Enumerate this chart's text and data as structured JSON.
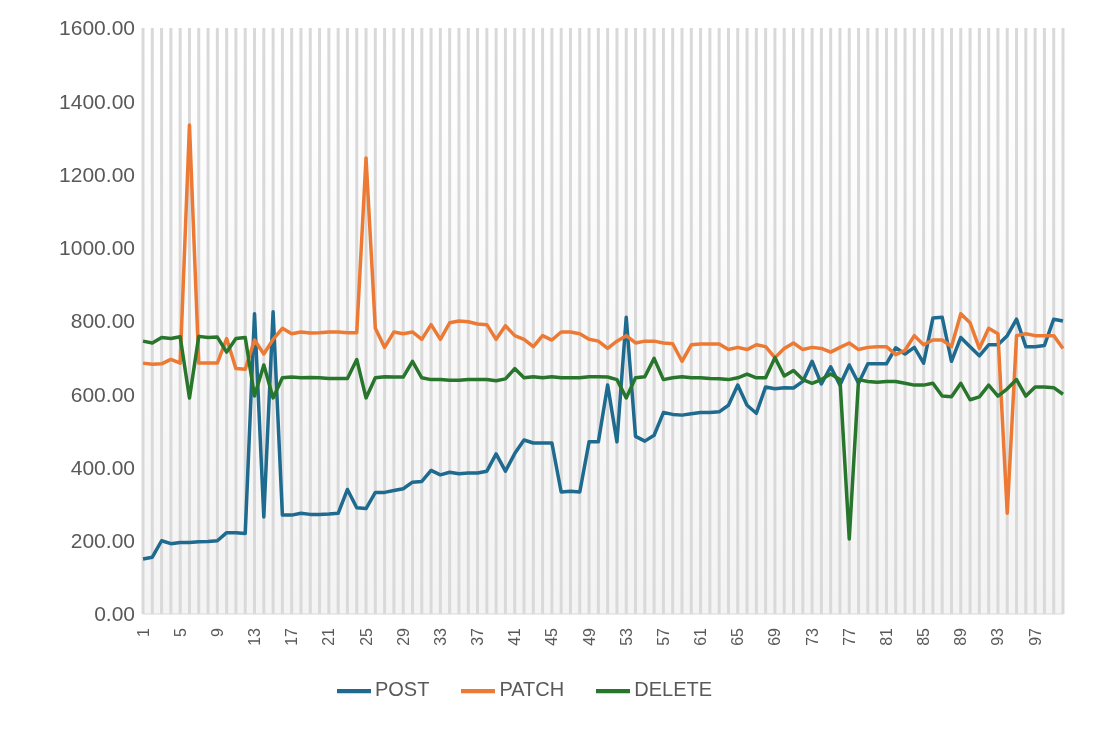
{
  "chart_data": {
    "type": "line",
    "categories": [
      "1",
      null,
      null,
      null,
      "5",
      null,
      null,
      null,
      "9",
      null,
      null,
      null,
      "13",
      null,
      null,
      null,
      "17",
      null,
      null,
      null,
      "21",
      null,
      null,
      null,
      "25",
      null,
      null,
      null,
      "29",
      null,
      null,
      null,
      "33",
      null,
      null,
      null,
      "37",
      null,
      null,
      null,
      "41",
      null,
      null,
      null,
      "45",
      null,
      null,
      null,
      "49",
      null,
      null,
      null,
      "53",
      null,
      null,
      null,
      "57",
      null,
      null,
      null,
      "61",
      null,
      null,
      null,
      "65",
      null,
      null,
      null,
      "69",
      null,
      null,
      null,
      "73",
      null,
      null,
      null,
      "77",
      null,
      null,
      null,
      "81",
      null,
      null,
      null,
      "85",
      null,
      null,
      null,
      "89",
      null,
      null,
      null,
      "93",
      null,
      null,
      null,
      "97",
      null,
      null,
      null
    ],
    "series": [
      {
        "name": "POST",
        "color": "#1f6a8f",
        "values": [
          150,
          155,
          200,
          192,
          195,
          195,
          197,
          198,
          200,
          222,
          222,
          220,
          820,
          265,
          825,
          270,
          270,
          275,
          272,
          272,
          273,
          275,
          340,
          290,
          288,
          332,
          332,
          337,
          342,
          360,
          362,
          392,
          380,
          387,
          383,
          385,
          385,
          390,
          437,
          390,
          438,
          475,
          467,
          467,
          467,
          333,
          335,
          333,
          470,
          470,
          625,
          470,
          810,
          485,
          472,
          488,
          550,
          545,
          543,
          547,
          550,
          550,
          552,
          570,
          625,
          570,
          548,
          620,
          615,
          618,
          617,
          635,
          690,
          628,
          675,
          625,
          680,
          630,
          683,
          683,
          683,
          727,
          710,
          728,
          685,
          808,
          810,
          690,
          755,
          730,
          705,
          735,
          735,
          760,
          805,
          730,
          730,
          733,
          805,
          800
        ]
      },
      {
        "name": "PATCH",
        "color": "#ec7a34",
        "values": [
          685,
          682,
          683,
          695,
          685,
          1335,
          685,
          685,
          685,
          752,
          670,
          668,
          748,
          710,
          750,
          780,
          765,
          770,
          767,
          768,
          770,
          770,
          768,
          768,
          1245,
          780,
          728,
          770,
          765,
          770,
          750,
          790,
          750,
          795,
          800,
          798,
          792,
          790,
          750,
          787,
          760,
          750,
          730,
          760,
          748,
          770,
          770,
          765,
          750,
          745,
          725,
          745,
          760,
          740,
          745,
          745,
          740,
          738,
          690,
          735,
          737,
          737,
          737,
          722,
          728,
          722,
          735,
          730,
          700,
          725,
          740,
          722,
          728,
          725,
          715,
          728,
          740,
          722,
          728,
          730,
          730,
          708,
          720,
          760,
          735,
          748,
          748,
          730,
          820,
          795,
          725,
          780,
          765,
          275,
          760,
          765,
          760,
          760,
          760,
          725
        ]
      },
      {
        "name": "DELETE",
        "color": "#27762c",
        "values": [
          745,
          740,
          755,
          752,
          757,
          590,
          758,
          755,
          756,
          715,
          752,
          755,
          595,
          680,
          590,
          645,
          647,
          645,
          646,
          645,
          643,
          643,
          643,
          695,
          590,
          645,
          648,
          647,
          647,
          690,
          645,
          640,
          640,
          638,
          638,
          640,
          640,
          640,
          637,
          642,
          670,
          645,
          648,
          645,
          648,
          645,
          645,
          645,
          648,
          648,
          647,
          640,
          590,
          645,
          648,
          698,
          640,
          645,
          648,
          645,
          645,
          643,
          642,
          640,
          645,
          655,
          645,
          645,
          700,
          650,
          665,
          640,
          630,
          640,
          655,
          640,
          205,
          640,
          635,
          633,
          635,
          635,
          630,
          625,
          625,
          630,
          595,
          593,
          630,
          585,
          593,
          625,
          595,
          615,
          640,
          595,
          620,
          620,
          618,
          600
        ]
      }
    ],
    "ylim": [
      0,
      1600
    ],
    "yticks": [
      {
        "value": 0,
        "label": "0.00"
      },
      {
        "value": 200,
        "label": "200.00"
      },
      {
        "value": 400,
        "label": "400.00"
      },
      {
        "value": 600,
        "label": "600.00"
      },
      {
        "value": 800,
        "label": "800.00"
      },
      {
        "value": 1000,
        "label": "1000.00"
      },
      {
        "value": 1200,
        "label": "1200.00"
      },
      {
        "value": 1400,
        "label": "1400.00"
      },
      {
        "value": 1600,
        "label": "1600.00"
      }
    ],
    "grid": "x",
    "legend": "bottom",
    "marker": "none",
    "line_style": "solid"
  }
}
